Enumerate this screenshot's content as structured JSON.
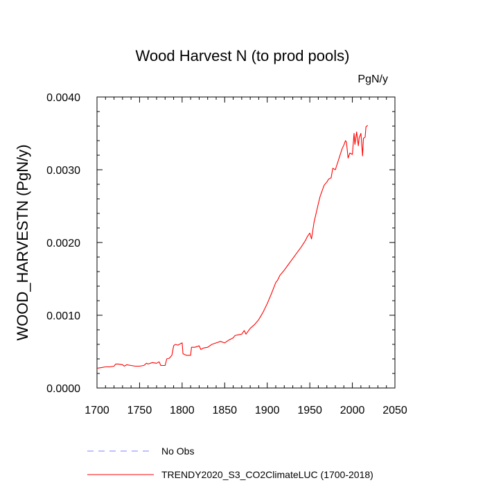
{
  "chart_data": {
    "type": "line",
    "title": "Wood Harvest N (to prod pools)",
    "units_label": "PgN/y",
    "ylabel": "WOOD_HARVESTN  (PgN/y)",
    "xlabel": "",
    "xlim": [
      1700,
      2050
    ],
    "ylim": [
      0.0,
      0.004
    ],
    "x_ticks": [
      1700,
      1750,
      1800,
      1850,
      1900,
      1950,
      2000,
      2050
    ],
    "x_tick_labels": [
      "1700",
      "1750",
      "1800",
      "1850",
      "1900",
      "1950",
      "2000",
      "2050"
    ],
    "y_ticks": [
      0.0,
      0.001,
      0.002,
      0.003,
      0.004
    ],
    "y_tick_labels": [
      "0.0000",
      "0.0010",
      "0.0020",
      "0.0030",
      "0.0040"
    ],
    "legend": [
      {
        "label": "No Obs",
        "color": "#8080ff",
        "style": "dashed"
      },
      {
        "label": "TRENDY2020_S3_CO2ClimateLUC (1700-2018)",
        "color": "#ff0000",
        "style": "solid"
      }
    ],
    "series": [
      {
        "name": "TRENDY2020_S3_CO2ClimateLUC (1700-2018)",
        "color": "#ff0000",
        "x": [
          1700,
          1705,
          1710,
          1715,
          1720,
          1722,
          1725,
          1730,
          1732,
          1735,
          1740,
          1745,
          1750,
          1755,
          1758,
          1760,
          1765,
          1770,
          1773,
          1775,
          1780,
          1782,
          1785,
          1788,
          1790,
          1792,
          1795,
          1800,
          1801,
          1805,
          1810,
          1811,
          1815,
          1820,
          1822,
          1825,
          1830,
          1835,
          1840,
          1845,
          1850,
          1855,
          1860,
          1862,
          1865,
          1870,
          1873,
          1875,
          1880,
          1885,
          1890,
          1895,
          1900,
          1905,
          1910,
          1912,
          1915,
          1920,
          1925,
          1930,
          1935,
          1940,
          1945,
          1947,
          1950,
          1952,
          1955,
          1960,
          1962,
          1965,
          1967,
          1970,
          1972,
          1975,
          1977,
          1980,
          1985,
          1988,
          1990,
          1992,
          1993,
          1995,
          1997,
          2000,
          2002,
          2003,
          2005,
          2007,
          2008,
          2010,
          2012,
          2013,
          2015,
          2016,
          2018
        ],
        "y": [
          0.00027,
          0.00028,
          0.00029,
          0.00029,
          0.0003,
          0.00033,
          0.00033,
          0.00032,
          0.0003,
          0.00032,
          0.00031,
          0.0003,
          0.0003,
          0.00031,
          0.00034,
          0.00033,
          0.00035,
          0.00034,
          0.00036,
          0.00031,
          0.00031,
          0.0004,
          0.00041,
          0.00045,
          0.00058,
          0.0006,
          0.00059,
          0.00062,
          0.00047,
          0.00045,
          0.00045,
          0.00056,
          0.00056,
          0.00058,
          0.00053,
          0.00055,
          0.00056,
          0.0006,
          0.00062,
          0.00064,
          0.00062,
          0.00066,
          0.00069,
          0.00072,
          0.00073,
          0.00074,
          0.00079,
          0.00074,
          0.00082,
          0.00087,
          0.00094,
          0.00104,
          0.00116,
          0.0013,
          0.00145,
          0.00148,
          0.00155,
          0.00162,
          0.0017,
          0.00178,
          0.00186,
          0.00194,
          0.00203,
          0.00208,
          0.00213,
          0.00205,
          0.00228,
          0.00253,
          0.00263,
          0.00273,
          0.00279,
          0.00283,
          0.00287,
          0.00289,
          0.00302,
          0.003,
          0.00318,
          0.00329,
          0.00334,
          0.0034,
          0.00338,
          0.00316,
          0.00323,
          0.00321,
          0.0035,
          0.00335,
          0.00352,
          0.00333,
          0.00344,
          0.0035,
          0.00319,
          0.00343,
          0.00345,
          0.00359,
          0.00361
        ]
      }
    ]
  }
}
